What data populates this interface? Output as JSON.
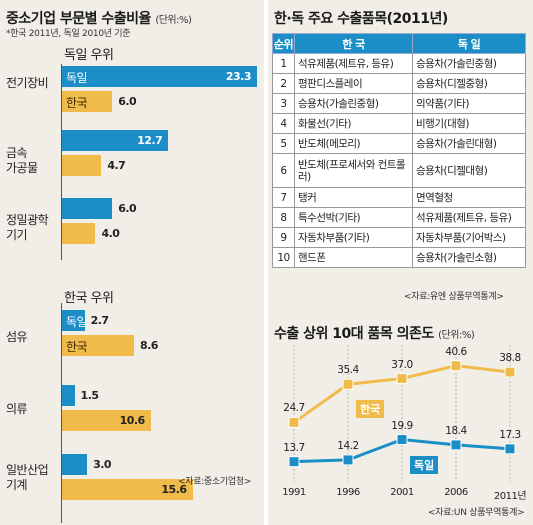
{
  "left": {
    "title": "중소기업 부문별 수출비율",
    "unit": "(단위:%)",
    "note": "*한국 2011년, 독일 2010년 기준",
    "group1_label": "독일 우위",
    "group2_label": "한국 우위",
    "label_de": "독일",
    "label_kr": "한국",
    "source": "<자료:중소기업청>"
  },
  "right": {
    "table_title": "한·독 주요 수출품목(2011년)",
    "table_headers": [
      "순위",
      "한 국",
      "독 일"
    ],
    "table_rows": [
      [
        "1",
        "석유제품(제트유, 등유)",
        "승용차(가솔린중형)"
      ],
      [
        "2",
        "평판디스플레이",
        "승용차(디젤중형)"
      ],
      [
        "3",
        "승용차(가솔린중형)",
        "의약품(기타)"
      ],
      [
        "4",
        "화물선(기타)",
        "비행기(대형)"
      ],
      [
        "5",
        "반도체(메모리)",
        "승용차(가솔린대형)"
      ],
      [
        "6",
        "반도체(프로세서와 컨트롤러)",
        "승용차(디젤대형)"
      ],
      [
        "7",
        "탱커",
        "면역혈청"
      ],
      [
        "8",
        "특수선박(기타)",
        "석유제품(제트유, 등유)"
      ],
      [
        "9",
        "자동차부품(기타)",
        "자동차부품(기어박스)"
      ],
      [
        "10",
        "핸드폰",
        "승용차(가솔린소형)"
      ]
    ],
    "table_source": "<자료:유엔 상품무역통계>",
    "line_title": "수출 상위 10대 품목 의존도",
    "line_unit": "(단위:%)",
    "line_source": "<자료:UN 상품무역통계>"
  },
  "chart_data": [
    {
      "type": "bar",
      "title": "중소기업 부문별 수출비율",
      "unit": "%",
      "categories": [
        "전기장비",
        "금속 가공물",
        "정밀광학 기기",
        "섬유",
        "의류",
        "일반산업 기계"
      ],
      "series": [
        {
          "name": "독일",
          "values": [
            23.3,
            12.7,
            6.0,
            2.7,
            1.5,
            3.0
          ],
          "labels": [
            "23.3",
            "12.7",
            "6.0",
            "2.7",
            "1.5",
            "3.0"
          ]
        },
        {
          "name": "한국",
          "values": [
            6.0,
            4.7,
            4.0,
            8.6,
            10.6,
            15.6
          ],
          "labels": [
            "6.0",
            "4.7",
            "4.0",
            "8.6",
            "10.6",
            "15.6"
          ]
        }
      ],
      "colors": {
        "독일": "#1b8ec8",
        "한국": "#f0bb4a"
      }
    },
    {
      "type": "line",
      "title": "수출 상위 10대 품목 의존도",
      "unit": "%",
      "x": [
        "1991",
        "1996",
        "2001",
        "2006",
        "2011년"
      ],
      "series": [
        {
          "name": "한국",
          "values": [
            24.7,
            35.4,
            37.0,
            40.6,
            38.8
          ],
          "labels": [
            "24.7",
            "35.4",
            "37.0",
            "40.6",
            "38.8"
          ],
          "color": "#f0bb4a"
        },
        {
          "name": "독일",
          "values": [
            13.7,
            14.2,
            19.9,
            18.4,
            17.3
          ],
          "labels": [
            "13.7",
            "14.2",
            "19.9",
            "18.4",
            "17.3"
          ],
          "color": "#1b8ec8"
        }
      ],
      "ylim": [
        8,
        45
      ]
    }
  ]
}
